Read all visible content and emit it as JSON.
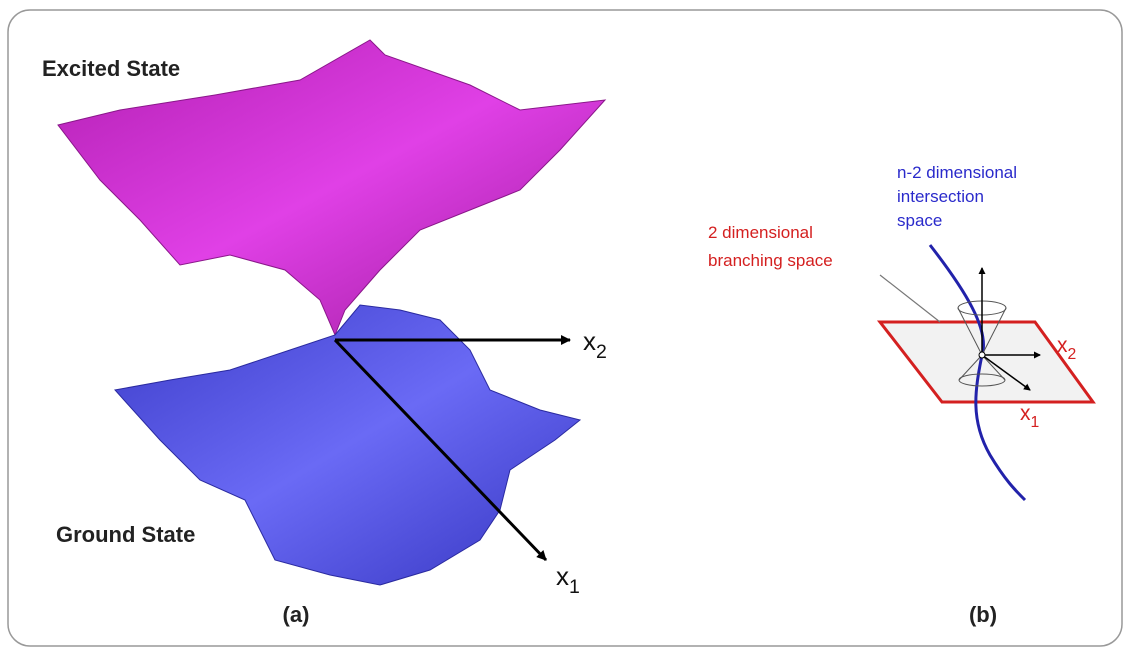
{
  "panel_a": {
    "excited_label": "Excited State",
    "ground_label": "Ground State",
    "axis_x2": {
      "base": "x",
      "sub": "2"
    },
    "axis_x1": {
      "base": "x",
      "sub": "1"
    },
    "caption": "(a)"
  },
  "panel_b": {
    "intersection_label": [
      "n-2 dimensional",
      "intersection",
      "space"
    ],
    "branching_label": [
      "2 dimensional",
      "branching space"
    ],
    "axis_x2": {
      "base": "x",
      "sub": "2"
    },
    "axis_x1": {
      "base": "x",
      "sub": "1"
    },
    "caption": "(b)"
  }
}
